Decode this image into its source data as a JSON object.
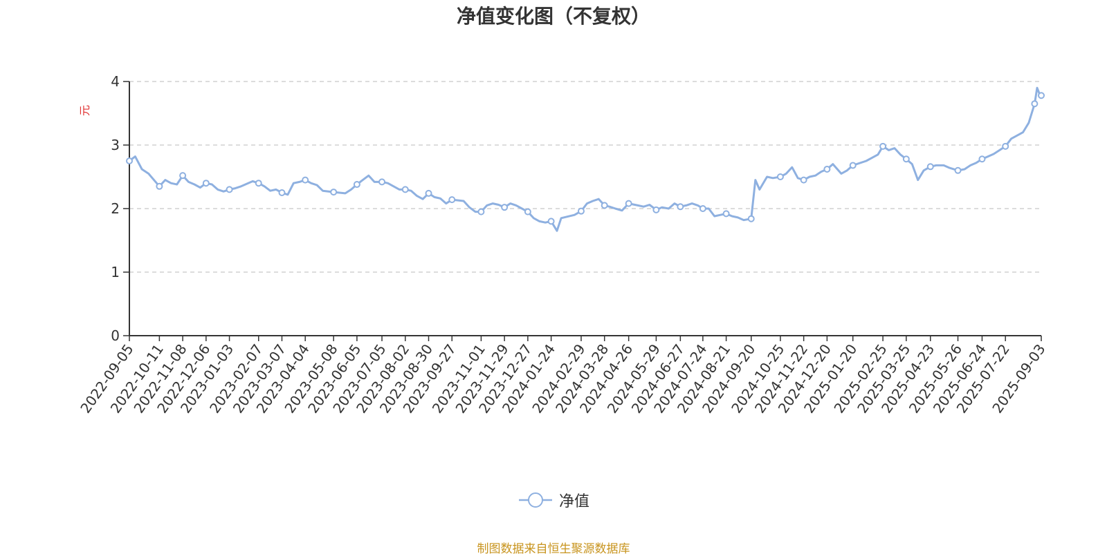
{
  "colors": {
    "line": "#8eb0e0",
    "grid": "#c8c8c8",
    "axis": "#333333",
    "unit": "#e03030",
    "source": "#c8941e"
  },
  "footer": {
    "source": "制图数据来自恒生聚源数据库"
  },
  "chart_data": {
    "type": "line",
    "title": "净值变化图（不复权）",
    "ylabel": "元",
    "xlabel": "",
    "ylim": [
      0,
      4
    ],
    "yticks": [
      0,
      1,
      2,
      3,
      4
    ],
    "grid": true,
    "grid_style": "dashed",
    "legend_position": "bottom-center",
    "x_start": "2022-09-05",
    "x_end": "2025-09-03",
    "x_ticks": [
      "2022-09-05",
      "2022-10-11",
      "2022-11-08",
      "2022-12-06",
      "2023-01-03",
      "2023-02-07",
      "2023-03-07",
      "2023-04-04",
      "2023-05-08",
      "2023-06-05",
      "2023-07-05",
      "2023-08-02",
      "2023-08-30",
      "2023-09-27",
      "2023-11-01",
      "2023-11-29",
      "2023-12-27",
      "2024-01-24",
      "2024-02-29",
      "2024-03-28",
      "2024-04-26",
      "2024-05-29",
      "2024-06-27",
      "2024-07-24",
      "2024-08-21",
      "2024-09-20",
      "2024-10-25",
      "2024-11-22",
      "2024-12-20",
      "2025-01-20",
      "2025-02-25",
      "2025-03-25",
      "2025-04-23",
      "2025-05-26",
      "2025-06-24",
      "2025-07-22",
      "2025-09-03"
    ],
    "series": [
      {
        "name": "净值",
        "x": [
          "2022-09-05",
          "2022-09-12",
          "2022-09-20",
          "2022-09-28",
          "2022-10-11",
          "2022-10-18",
          "2022-10-25",
          "2022-11-01",
          "2022-11-08",
          "2022-11-15",
          "2022-11-22",
          "2022-11-29",
          "2022-12-06",
          "2022-12-13",
          "2022-12-20",
          "2022-12-27",
          "2023-01-03",
          "2023-01-10",
          "2023-01-17",
          "2023-01-31",
          "2023-02-07",
          "2023-02-14",
          "2023-02-21",
          "2023-02-28",
          "2023-03-07",
          "2023-03-14",
          "2023-03-21",
          "2023-03-28",
          "2023-04-04",
          "2023-04-11",
          "2023-04-18",
          "2023-04-25",
          "2023-05-08",
          "2023-05-15",
          "2023-05-22",
          "2023-05-29",
          "2023-06-05",
          "2023-06-12",
          "2023-06-19",
          "2023-06-26",
          "2023-07-05",
          "2023-07-12",
          "2023-07-19",
          "2023-07-26",
          "2023-08-02",
          "2023-08-09",
          "2023-08-16",
          "2023-08-23",
          "2023-08-30",
          "2023-09-06",
          "2023-09-13",
          "2023-09-20",
          "2023-09-27",
          "2023-10-11",
          "2023-10-18",
          "2023-10-25",
          "2023-11-01",
          "2023-11-08",
          "2023-11-15",
          "2023-11-22",
          "2023-11-29",
          "2023-12-06",
          "2023-12-13",
          "2023-12-20",
          "2023-12-27",
          "2024-01-03",
          "2024-01-10",
          "2024-01-17",
          "2024-01-24",
          "2024-01-31",
          "2024-02-05",
          "2024-02-21",
          "2024-02-29",
          "2024-03-07",
          "2024-03-14",
          "2024-03-21",
          "2024-03-28",
          "2024-04-03",
          "2024-04-10",
          "2024-04-18",
          "2024-04-26",
          "2024-05-07",
          "2024-05-14",
          "2024-05-21",
          "2024-05-29",
          "2024-06-05",
          "2024-06-13",
          "2024-06-20",
          "2024-06-27",
          "2024-07-04",
          "2024-07-11",
          "2024-07-18",
          "2024-07-24",
          "2024-07-31",
          "2024-08-07",
          "2024-08-14",
          "2024-08-21",
          "2024-08-28",
          "2024-09-04",
          "2024-09-11",
          "2024-09-20",
          "2024-09-25",
          "2024-09-30",
          "2024-10-09",
          "2024-10-16",
          "2024-10-25",
          "2024-11-01",
          "2024-11-08",
          "2024-11-15",
          "2024-11-22",
          "2024-11-29",
          "2024-12-06",
          "2024-12-13",
          "2024-12-20",
          "2024-12-27",
          "2025-01-06",
          "2025-01-13",
          "2025-01-20",
          "2025-02-05",
          "2025-02-12",
          "2025-02-19",
          "2025-02-25",
          "2025-03-04",
          "2025-03-11",
          "2025-03-18",
          "2025-03-25",
          "2025-04-01",
          "2025-04-08",
          "2025-04-15",
          "2025-04-23",
          "2025-04-30",
          "2025-05-09",
          "2025-05-16",
          "2025-05-26",
          "2025-06-03",
          "2025-06-10",
          "2025-06-17",
          "2025-06-24",
          "2025-07-01",
          "2025-07-08",
          "2025-07-15",
          "2025-07-22",
          "2025-07-29",
          "2025-08-05",
          "2025-08-12",
          "2025-08-19",
          "2025-08-26",
          "2025-08-29",
          "2025-09-01",
          "2025-09-03"
        ],
        "values": [
          2.75,
          2.82,
          2.62,
          2.55,
          2.35,
          2.45,
          2.4,
          2.38,
          2.52,
          2.42,
          2.38,
          2.33,
          2.4,
          2.38,
          2.3,
          2.27,
          2.3,
          2.32,
          2.35,
          2.43,
          2.4,
          2.35,
          2.28,
          2.3,
          2.25,
          2.22,
          2.4,
          2.42,
          2.45,
          2.4,
          2.37,
          2.28,
          2.26,
          2.25,
          2.24,
          2.3,
          2.38,
          2.45,
          2.52,
          2.42,
          2.42,
          2.4,
          2.35,
          2.3,
          2.3,
          2.28,
          2.2,
          2.15,
          2.24,
          2.18,
          2.16,
          2.08,
          2.14,
          2.12,
          2.02,
          1.95,
          1.95,
          2.05,
          2.08,
          2.06,
          2.02,
          2.08,
          2.05,
          2.0,
          1.95,
          1.85,
          1.8,
          1.78,
          1.8,
          1.65,
          1.85,
          1.9,
          1.96,
          2.08,
          2.12,
          2.15,
          2.05,
          2.03,
          2.0,
          1.97,
          2.08,
          2.05,
          2.03,
          2.06,
          1.98,
          2.02,
          2.0,
          2.08,
          2.03,
          2.05,
          2.08,
          2.05,
          2.0,
          2.0,
          1.88,
          1.9,
          1.92,
          1.88,
          1.86,
          1.82,
          1.84,
          2.45,
          2.3,
          2.5,
          2.48,
          2.5,
          2.55,
          2.65,
          2.48,
          2.45,
          2.5,
          2.52,
          2.58,
          2.62,
          2.7,
          2.55,
          2.6,
          2.68,
          2.75,
          2.8,
          2.85,
          2.98,
          2.92,
          2.95,
          2.85,
          2.78,
          2.7,
          2.45,
          2.6,
          2.66,
          2.68,
          2.68,
          2.64,
          2.6,
          2.62,
          2.68,
          2.72,
          2.78,
          2.82,
          2.86,
          2.92,
          2.98,
          3.1,
          3.15,
          3.2,
          3.35,
          3.65,
          3.9,
          3.8,
          3.78
        ]
      }
    ],
    "marker_dates": [
      "2022-09-05",
      "2022-10-11",
      "2022-11-08",
      "2022-12-06",
      "2023-01-03",
      "2023-02-07",
      "2023-03-07",
      "2023-04-04",
      "2023-05-08",
      "2023-06-05",
      "2023-07-05",
      "2023-08-02",
      "2023-08-30",
      "2023-09-27",
      "2023-11-01",
      "2023-11-29",
      "2023-12-27",
      "2024-01-24",
      "2024-02-29",
      "2024-03-28",
      "2024-04-26",
      "2024-05-29",
      "2024-06-27",
      "2024-07-24",
      "2024-08-21",
      "2024-09-20",
      "2024-10-25",
      "2024-11-22",
      "2024-12-20",
      "2025-01-20",
      "2025-02-25",
      "2025-03-25",
      "2025-04-23",
      "2025-05-26",
      "2025-06-24",
      "2025-07-22",
      "2025-08-26",
      "2025-09-03"
    ]
  }
}
